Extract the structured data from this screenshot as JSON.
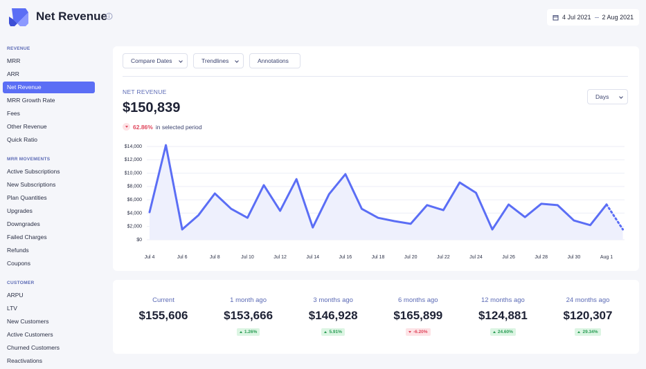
{
  "header": {
    "title": "Net Revenue",
    "date_range": [
      "4 Jul 2021",
      "2 Aug 2021"
    ]
  },
  "sidebar": {
    "active_item": {
      "section": 0,
      "item": 2
    },
    "sections": [
      {
        "heading": "REVENUE",
        "items": [
          "MRR",
          "ARR",
          "Net Revenue",
          "MRR Growth Rate",
          "Fees",
          "Other Revenue",
          "Quick Ratio"
        ]
      },
      {
        "heading": "MRR MOVEMENTS",
        "items": [
          "Active Subscriptions",
          "New Subscriptions",
          "Plan Quantities",
          "Upgrades",
          "Downgrades",
          "Failed Charges",
          "Refunds",
          "Coupons"
        ]
      },
      {
        "heading": "CUSTOMER",
        "items": [
          "ARPU",
          "LTV",
          "New Customers",
          "Active Customers",
          "Churned Customers",
          "Reactivations"
        ]
      }
    ]
  },
  "toolbar": [
    {
      "label": "Compare Dates",
      "dropdown": true
    },
    {
      "label": "Trendlines",
      "dropdown": true
    },
    {
      "label": "Annotations",
      "dropdown": false
    }
  ],
  "summary": {
    "label": "NET REVENUE",
    "value": "$150,839",
    "change": "62.86%",
    "direction": "down",
    "change_note": "in selected period"
  },
  "interval": "Days",
  "chart_data": {
    "type": "area",
    "color": "#5b6ef5",
    "fill": "#eef0fd",
    "grid": true,
    "dashed_last_segment": true,
    "categories": [
      "Jul 4",
      null,
      "Jul 6",
      null,
      "Jul 8",
      null,
      "Jul 10",
      null,
      "Jul 12",
      null,
      "Jul 14",
      null,
      "Jul 16",
      null,
      "Jul 18",
      null,
      "Jul 20",
      null,
      "Jul 22",
      null,
      "Jul 24",
      null,
      "Jul 26",
      null,
      "Jul 28",
      null,
      "Jul 30",
      null,
      "Aug 1",
      null
    ],
    "values": [
      4150,
      14200,
      1550,
      3700,
      6950,
      4650,
      3300,
      8200,
      4350,
      9100,
      1850,
      6850,
      9850,
      4650,
      3300,
      2800,
      2400,
      5200,
      4450,
      8600,
      7050,
      1550,
      5300,
      3400,
      5400,
      5200,
      2900,
      2200,
      5300,
      1550
    ],
    "ylim": [
      0,
      14000
    ],
    "yticks": [
      {
        "value": 0,
        "label": "$0"
      },
      {
        "value": 2000,
        "label": "$2,000"
      },
      {
        "value": 4000,
        "label": "$4,000"
      },
      {
        "value": 6000,
        "label": "$6,000"
      },
      {
        "value": 8000,
        "label": "$8,000"
      },
      {
        "value": 10000,
        "label": "$10,000"
      },
      {
        "value": 12000,
        "label": "$12,000"
      },
      {
        "value": 14000,
        "label": "$14,000"
      }
    ]
  },
  "comparisons": [
    {
      "label": "Current",
      "value": "$155,606"
    },
    {
      "label": "1 month ago",
      "value": "$153,666",
      "change": "1.26%",
      "direction": "up"
    },
    {
      "label": "3 months ago",
      "value": "$146,928",
      "change": "5.91%",
      "direction": "up"
    },
    {
      "label": "6 months ago",
      "value": "$165,899",
      "change": "-6.20%",
      "direction": "down"
    },
    {
      "label": "12 months ago",
      "value": "$124,881",
      "change": "24.60%",
      "direction": "up"
    },
    {
      "label": "24 months ago",
      "value": "$120,307",
      "change": "29.34%",
      "direction": "up"
    }
  ]
}
